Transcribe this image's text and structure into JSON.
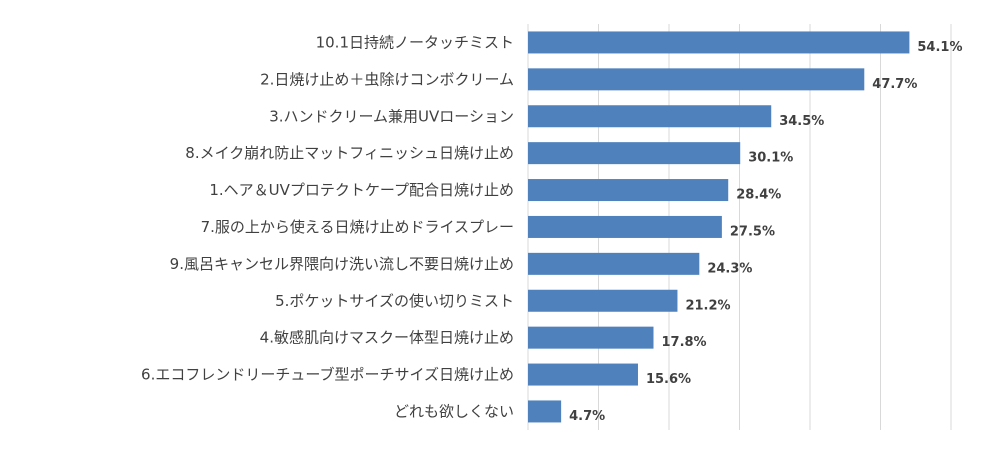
{
  "chart_data": {
    "type": "bar",
    "orientation": "horizontal",
    "title": "",
    "xlabel": "",
    "ylabel": "",
    "categories": [
      "10.1日持続ノータッチミスト",
      "2.日焼け止め＋虫除けコンボクリーム",
      "3.ハンドクリーム兼用UVローション",
      "8.メイク崩れ防止マットフィニッシュ日焼け止め",
      "1.ヘア＆UVプロテクトケープ配合日焼け止め",
      "7.服の上から使える日焼け止めドライスプレー",
      "9.風呂キャンセル界隈向け洗い流し不要日焼け止め",
      "5.ポケットサイズの使い切りミスト",
      "4.敏感肌向けマスクー体型日焼け止め",
      "6.エコフレンドリーチューブ型ポーチサイズ日焼け止め",
      "どれも欲しくない"
    ],
    "values": [
      54.1,
      47.7,
      34.5,
      30.1,
      28.4,
      27.5,
      24.3,
      21.2,
      17.8,
      15.6,
      4.7
    ],
    "value_labels": [
      "54.1%",
      "47.7%",
      "34.5%",
      "30.1%",
      "28.4%",
      "27.5%",
      "24.3%",
      "21.2%",
      "17.8%",
      "15.6%",
      "4.7%"
    ],
    "xlim": [
      0,
      60
    ],
    "grid": true,
    "legend": "none",
    "bar_color": "#4f81bd"
  }
}
